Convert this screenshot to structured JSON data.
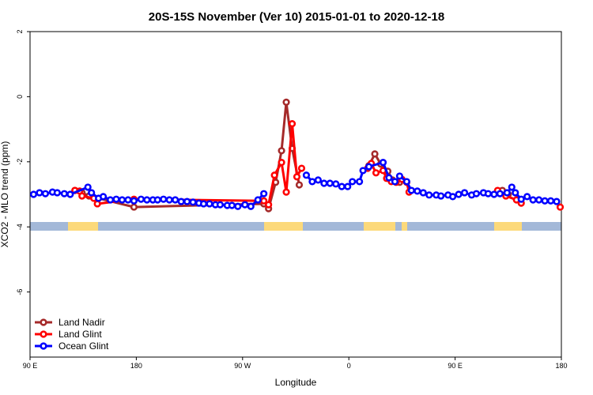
{
  "chart_data": {
    "type": "line",
    "title": "20S-15S November (Ver 10)   2015-01-01 to 2020-12-18",
    "x_label": "Longitude",
    "y_label": "XCO2 - MLO trend (ppm)",
    "xlim": [
      90,
      540
    ],
    "ylim": [
      -8,
      2
    ],
    "xticks": [
      {
        "value": 90,
        "label": "90 E"
      },
      {
        "value": 180,
        "label": "180"
      },
      {
        "value": 270,
        "label": "90 W"
      },
      {
        "value": 360,
        "label": "0"
      },
      {
        "value": 450,
        "label": "90 E"
      },
      {
        "value": 540,
        "label": "180"
      }
    ],
    "yticks": [
      -6,
      -4,
      -2,
      0,
      2
    ],
    "legend": "bottom-left",
    "series": [
      {
        "name": "Land Nadir",
        "color": "#a52a2a",
        "x": [
          128,
          134,
          140,
          178,
          288,
          292,
          298,
          303,
          307,
          312,
          318,
          null,
          377,
          382,
          387,
          393,
          397,
          403,
          null,
          490,
          495
        ],
        "values": [
          -2.88,
          -2.95,
          -3.05,
          -3.39,
          -3.29,
          -3.44,
          -2.63,
          -1.66,
          -0.17,
          -1.59,
          -2.71,
          null,
          -2.12,
          -1.76,
          -2.07,
          -2.29,
          -2.56,
          -2.63,
          null,
          -2.88,
          -3.0
        ]
      },
      {
        "name": "Land Glint",
        "color": "#ff0000",
        "x": [
          128,
          132,
          134,
          144,
          147,
          178,
          288,
          292,
          297,
          303,
          307,
          312,
          316,
          320,
          null,
          376,
          379,
          383,
          389,
          392,
          396,
          400,
          405,
          409,
          411,
          null,
          486,
          493,
          502,
          506,
          null,
          539
        ],
        "values": [
          -2.88,
          -2.9,
          -3.05,
          -3.12,
          -3.29,
          -3.15,
          -3.2,
          -3.32,
          -2.41,
          -2.02,
          -2.93,
          -0.83,
          -2.46,
          -2.2,
          null,
          -2.2,
          -2.05,
          -2.34,
          -2.27,
          -2.51,
          -2.61,
          -2.63,
          -2.54,
          -2.63,
          -2.93,
          null,
          -2.88,
          -3.05,
          -3.17,
          -3.27,
          null,
          -3.39
        ]
      },
      {
        "name": "Ocean Glint",
        "color": "#0000ff",
        "x": [
          93,
          98,
          103,
          109,
          113,
          119,
          124,
          139,
          142,
          148,
          152,
          158,
          163,
          168,
          173,
          178,
          184,
          189,
          194,
          198,
          203,
          208,
          213,
          218,
          223,
          228,
          233,
          237,
          242,
          247,
          251,
          257,
          261,
          266,
          272,
          277,
          283,
          288,
          null,
          324,
          329,
          334,
          339,
          344,
          349,
          354,
          359,
          363,
          369,
          372,
          377,
          389,
          394,
          399,
          403,
          409,
          413,
          418,
          423,
          428,
          434,
          438,
          444,
          448,
          453,
          458,
          464,
          468,
          474,
          478,
          483,
          488,
          494,
          498,
          501,
          506,
          511,
          516,
          521,
          526,
          531,
          536
        ],
        "values": [
          -3.0,
          -2.95,
          -2.98,
          -2.93,
          -2.95,
          -2.98,
          -3.0,
          -2.78,
          -2.95,
          -3.12,
          -3.07,
          -3.17,
          -3.15,
          -3.17,
          -3.17,
          -3.2,
          -3.15,
          -3.17,
          -3.17,
          -3.17,
          -3.15,
          -3.17,
          -3.17,
          -3.22,
          -3.22,
          -3.24,
          -3.27,
          -3.29,
          -3.29,
          -3.32,
          -3.32,
          -3.34,
          -3.34,
          -3.37,
          -3.32,
          -3.37,
          -3.17,
          -2.98,
          null,
          -2.41,
          -2.61,
          -2.56,
          -2.66,
          -2.66,
          -2.68,
          -2.76,
          -2.76,
          -2.61,
          -2.61,
          -2.27,
          -2.15,
          -2.02,
          -2.49,
          -2.61,
          -2.44,
          -2.61,
          -2.88,
          -2.9,
          -2.95,
          -3.02,
          -3.02,
          -3.05,
          -3.02,
          -3.07,
          -3.0,
          -2.95,
          -3.02,
          -2.98,
          -2.95,
          -2.98,
          -3.0,
          -2.98,
          -2.95,
          -2.78,
          -2.95,
          -3.15,
          -3.07,
          -3.17,
          -3.17,
          -3.2,
          -3.2,
          -3.22
        ]
      }
    ]
  }
}
